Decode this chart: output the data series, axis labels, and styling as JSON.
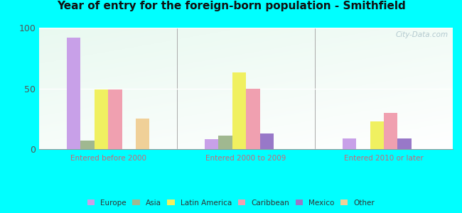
{
  "title": "Year of entry for the foreign-born population - Smithfield",
  "categories": [
    "Entered before 2000",
    "Entered 2000 to 2009",
    "Entered 2010 or later"
  ],
  "series": {
    "Europe": [
      92,
      8,
      9
    ],
    "Asia": [
      7,
      11,
      0
    ],
    "Latin America": [
      49,
      63,
      23
    ],
    "Caribbean": [
      49,
      50,
      30
    ],
    "Mexico": [
      0,
      13,
      9
    ],
    "Other": [
      25,
      0,
      0
    ]
  },
  "colors": {
    "Europe": "#c8a0e8",
    "Asia": "#a0b890",
    "Latin America": "#f0f060",
    "Caribbean": "#f0a0b0",
    "Mexico": "#9878c8",
    "Other": "#f0d098"
  },
  "ylim": [
    0,
    100
  ],
  "yticks": [
    0,
    50,
    100
  ],
  "background_color_top": "#d0f0e0",
  "background_color_bottom": "#f0fff8",
  "outer_background": "#00ffff",
  "watermark": "City-Data.com"
}
